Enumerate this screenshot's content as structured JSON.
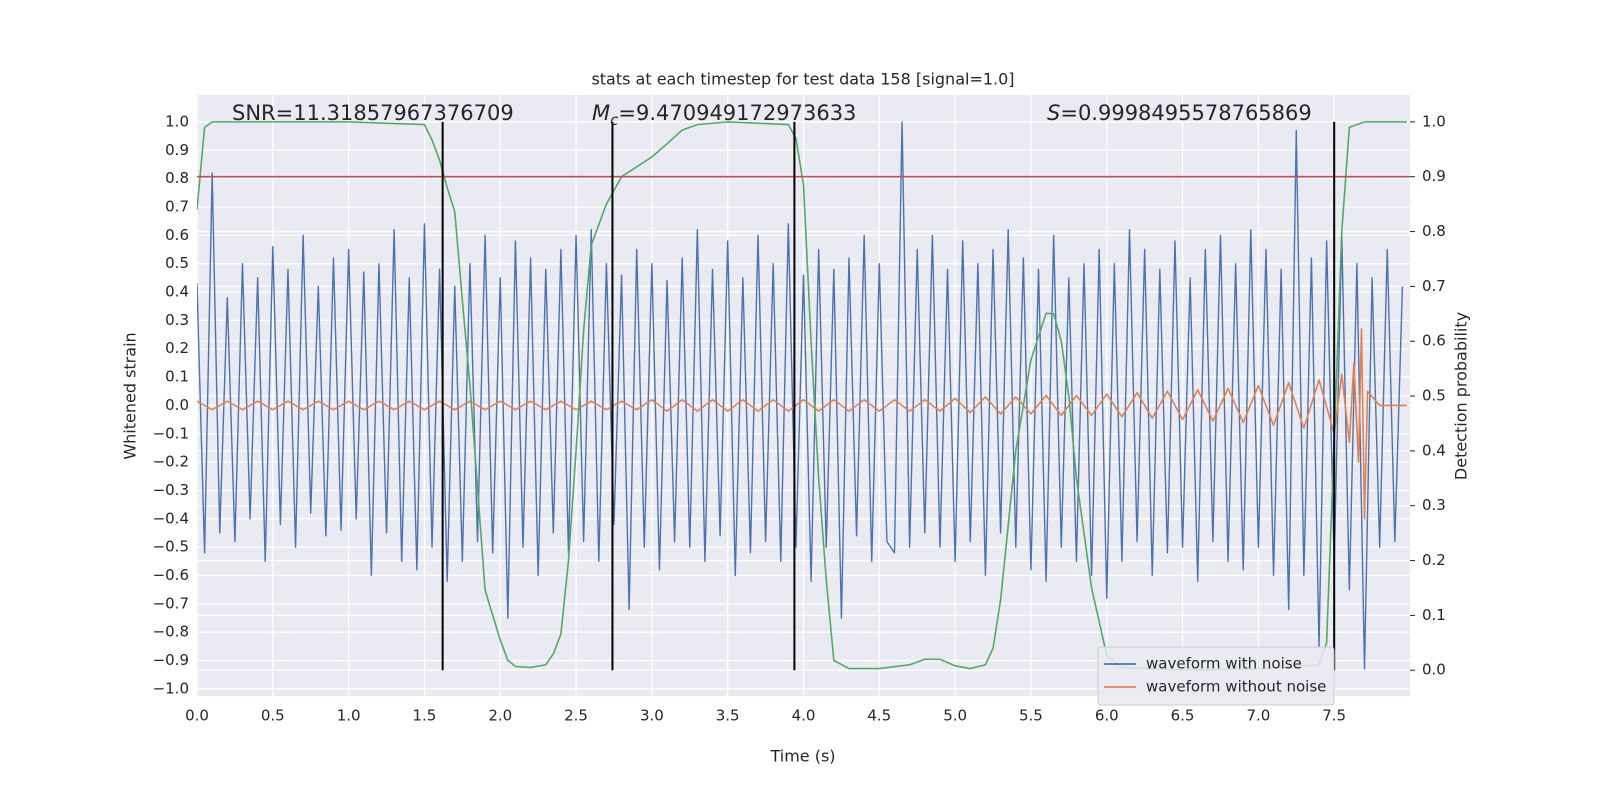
{
  "chart_data": {
    "type": "line",
    "title": "stats at each timestep for test data 158 [signal=1.0]",
    "x_label": "Time (s)",
    "y_label": "Whitened strain",
    "y2_label": "Detection probability",
    "xlim": [
      0,
      8.0
    ],
    "ylim": [
      -1.025,
      1.095
    ],
    "y2lim": [
      -0.047,
      1.049
    ],
    "grid": true,
    "background": "#eaeaf2",
    "legend": "lower right",
    "xticks": [
      {
        "value": 0,
        "label": "0.0"
      },
      {
        "value": 0.5,
        "label": "0.5"
      },
      {
        "value": 1,
        "label": "1.0"
      },
      {
        "value": 1.5,
        "label": "1.5"
      },
      {
        "value": 2,
        "label": "2.0"
      },
      {
        "value": 2.5,
        "label": "2.5"
      },
      {
        "value": 3,
        "label": "3.0"
      },
      {
        "value": 3.5,
        "label": "3.5"
      },
      {
        "value": 4,
        "label": "4.0"
      },
      {
        "value": 4.5,
        "label": "4.5"
      },
      {
        "value": 5,
        "label": "5.0"
      },
      {
        "value": 5.5,
        "label": "5.5"
      },
      {
        "value": 6,
        "label": "6.0"
      },
      {
        "value": 6.5,
        "label": "6.5"
      },
      {
        "value": 7,
        "label": "7.0"
      },
      {
        "value": 7.5,
        "label": "7.5"
      }
    ],
    "yticks": [
      {
        "value": -1,
        "label": "−1.0"
      },
      {
        "value": -0.9,
        "label": "−0.9"
      },
      {
        "value": -0.8,
        "label": "−0.8"
      },
      {
        "value": -0.7,
        "label": "−0.7"
      },
      {
        "value": -0.6,
        "label": "−0.6"
      },
      {
        "value": -0.5,
        "label": "−0.5"
      },
      {
        "value": -0.4,
        "label": "−0.4"
      },
      {
        "value": -0.3,
        "label": "−0.3"
      },
      {
        "value": -0.2,
        "label": "−0.2"
      },
      {
        "value": -0.1,
        "label": "−0.1"
      },
      {
        "value": 0,
        "label": "0.0"
      },
      {
        "value": 0.1,
        "label": "0.1"
      },
      {
        "value": 0.2,
        "label": "0.2"
      },
      {
        "value": 0.3,
        "label": "0.3"
      },
      {
        "value": 0.4,
        "label": "0.4"
      },
      {
        "value": 0.5,
        "label": "0.5"
      },
      {
        "value": 0.6,
        "label": "0.6"
      },
      {
        "value": 0.7,
        "label": "0.7"
      },
      {
        "value": 0.8,
        "label": "0.8"
      },
      {
        "value": 0.9,
        "label": "0.9"
      },
      {
        "value": 1,
        "label": "1.0"
      }
    ],
    "y2ticks": [
      {
        "value": 0,
        "label": "0.0"
      },
      {
        "value": 0.1,
        "label": "0.1"
      },
      {
        "value": 0.2,
        "label": "0.2"
      },
      {
        "value": 0.3,
        "label": "0.3"
      },
      {
        "value": 0.4,
        "label": "0.4"
      },
      {
        "value": 0.5,
        "label": "0.5"
      },
      {
        "value": 0.6,
        "label": "0.6"
      },
      {
        "value": 0.7,
        "label": "0.7"
      },
      {
        "value": 0.8,
        "label": "0.8"
      },
      {
        "value": 0.9,
        "label": "0.9"
      },
      {
        "value": 1,
        "label": "1.0"
      }
    ],
    "annotations": [
      {
        "text": "SNR=11.31857967376709"
      },
      {
        "symbol": "M",
        "subscript": "c",
        "text": "=9.470949172973633"
      },
      {
        "symbol": "S",
        "text": "=0.9998495578765869"
      }
    ],
    "series": [
      {
        "name": "waveform with noise",
        "color": "#4c72b0",
        "axis": "y",
        "in_legend": true,
        "x": [
          0,
          0.05,
          0.1,
          0.15,
          0.2,
          0.25,
          0.3,
          0.35,
          0.4,
          0.45,
          0.5,
          0.55,
          0.6,
          0.65,
          0.7,
          0.75,
          0.8,
          0.85,
          0.9,
          0.95,
          1,
          1.05,
          1.1,
          1.15,
          1.2,
          1.25,
          1.3,
          1.35,
          1.4,
          1.45,
          1.5,
          1.55,
          1.6,
          1.65,
          1.7,
          1.75,
          1.8,
          1.85,
          1.9,
          1.95,
          2,
          2.05,
          2.1,
          2.15,
          2.2,
          2.25,
          2.3,
          2.35,
          2.4,
          2.45,
          2.5,
          2.55,
          2.6,
          2.65,
          2.7,
          2.75,
          2.8,
          2.85,
          2.9,
          2.95,
          3,
          3.05,
          3.1,
          3.15,
          3.2,
          3.25,
          3.3,
          3.35,
          3.4,
          3.45,
          3.5,
          3.55,
          3.6,
          3.65,
          3.7,
          3.75,
          3.8,
          3.85,
          3.9,
          3.95,
          4,
          4.05,
          4.1,
          4.15,
          4.2,
          4.25,
          4.3,
          4.35,
          4.4,
          4.45,
          4.5,
          4.55,
          4.6,
          4.65,
          4.7,
          4.75,
          4.8,
          4.85,
          4.9,
          4.95,
          5,
          5.05,
          5.1,
          5.15,
          5.2,
          5.25,
          5.3,
          5.35,
          5.4,
          5.45,
          5.5,
          5.55,
          5.6,
          5.65,
          5.7,
          5.75,
          5.8,
          5.85,
          5.9,
          5.95,
          6,
          6.05,
          6.1,
          6.15,
          6.2,
          6.25,
          6.3,
          6.35,
          6.4,
          6.45,
          6.5,
          6.55,
          6.6,
          6.65,
          6.7,
          6.75,
          6.8,
          6.85,
          6.9,
          6.95,
          7,
          7.05,
          7.1,
          7.15,
          7.2,
          7.25,
          7.3,
          7.35,
          7.4,
          7.45,
          7.5,
          7.55,
          7.6,
          7.65,
          7.7,
          7.75,
          7.8,
          7.85,
          7.9,
          7.95
        ],
        "values": [
          0.43,
          -0.52,
          0.82,
          -0.45,
          0.38,
          -0.48,
          0.5,
          -0.4,
          0.45,
          -0.55,
          0.56,
          -0.42,
          0.48,
          -0.5,
          0.6,
          -0.38,
          0.42,
          -0.46,
          0.52,
          -0.44,
          0.55,
          -0.4,
          0.47,
          -0.6,
          0.5,
          -0.45,
          0.62,
          -0.55,
          0.45,
          -0.58,
          0.64,
          -0.5,
          0.48,
          -0.62,
          0.42,
          -0.55,
          0.5,
          -0.48,
          0.6,
          -0.52,
          0.45,
          -0.75,
          0.58,
          -0.5,
          0.52,
          -0.6,
          0.48,
          -0.45,
          0.55,
          -0.52,
          0.6,
          -0.48,
          0.62,
          -0.55,
          0.5,
          -0.42,
          0.46,
          -0.72,
          0.55,
          -0.5,
          0.5,
          -0.58,
          0.44,
          -0.48,
          0.52,
          -0.5,
          0.62,
          -0.55,
          0.48,
          -0.46,
          0.58,
          -0.6,
          0.45,
          -0.52,
          0.6,
          -0.48,
          0.5,
          -0.55,
          0.64,
          -0.5,
          0.46,
          -0.62,
          0.55,
          -0.5,
          0.48,
          -0.75,
          0.52,
          -0.46,
          0.6,
          -0.55,
          0.5,
          -0.48,
          -0.52,
          1.0,
          -0.5,
          0.55,
          -0.45,
          0.6,
          -0.5,
          0.48,
          -0.55,
          0.58,
          -0.48,
          0.5,
          -0.6,
          0.55,
          -0.45,
          0.62,
          -0.5,
          0.52,
          -0.58,
          0.48,
          -0.62,
          0.6,
          -0.5,
          0.45,
          -0.55,
          0.5,
          -0.6,
          0.55,
          -0.68,
          0.5,
          -0.55,
          0.62,
          -0.48,
          0.55,
          -0.6,
          0.48,
          -0.52,
          0.58,
          -0.5,
          0.45,
          -0.62,
          0.55,
          -0.48,
          0.6,
          -0.55,
          0.5,
          -0.58,
          0.62,
          -0.5,
          0.55,
          -0.6,
          0.48,
          -0.72,
          0.97,
          -0.6,
          0.52,
          -0.85,
          0.58,
          -0.55,
          0.6,
          -0.65,
          0.5,
          -0.93,
          0.45,
          -0.5,
          0.55,
          -0.48,
          0.42
        ]
      },
      {
        "name": "waveform without noise",
        "color": "#dd8452",
        "axis": "y",
        "in_legend": true,
        "x": [
          0,
          0.1,
          0.2,
          0.3,
          0.4,
          0.5,
          0.6,
          0.7,
          0.8,
          0.9,
          1,
          1.1,
          1.2,
          1.3,
          1.4,
          1.5,
          1.6,
          1.7,
          1.8,
          1.9,
          2,
          2.1,
          2.2,
          2.3,
          2.4,
          2.5,
          2.6,
          2.7,
          2.8,
          2.9,
          3,
          3.1,
          3.2,
          3.3,
          3.4,
          3.5,
          3.6,
          3.7,
          3.8,
          3.9,
          4,
          4.1,
          4.2,
          4.3,
          4.4,
          4.5,
          4.6,
          4.7,
          4.8,
          4.9,
          5,
          5.1,
          5.2,
          5.3,
          5.4,
          5.5,
          5.6,
          5.7,
          5.8,
          5.9,
          6,
          6.1,
          6.2,
          6.3,
          6.4,
          6.5,
          6.6,
          6.7,
          6.8,
          6.9,
          7,
          7.1,
          7.2,
          7.3,
          7.4,
          7.5,
          7.55,
          7.6,
          7.63,
          7.66,
          7.68,
          7.7,
          7.72,
          7.8,
          7.98
        ],
        "values": [
          0.015,
          -0.015,
          0.015,
          -0.015,
          0.015,
          -0.015,
          0.015,
          -0.015,
          0.015,
          -0.015,
          0.015,
          -0.015,
          0.015,
          -0.015,
          0.015,
          -0.015,
          0.015,
          -0.015,
          0.015,
          -0.015,
          0.015,
          -0.015,
          0.015,
          -0.015,
          0.015,
          -0.015,
          0.015,
          -0.015,
          0.015,
          -0.015,
          0.02,
          -0.02,
          0.02,
          -0.02,
          0.02,
          -0.02,
          0.02,
          -0.02,
          0.02,
          -0.02,
          0.02,
          -0.02,
          0.02,
          -0.02,
          0.02,
          -0.02,
          0.02,
          -0.02,
          0.02,
          -0.02,
          0.025,
          -0.025,
          0.03,
          -0.03,
          0.03,
          -0.03,
          0.035,
          -0.035,
          0.035,
          -0.035,
          0.04,
          -0.04,
          0.045,
          -0.045,
          0.05,
          -0.05,
          0.055,
          -0.055,
          0.06,
          -0.06,
          0.07,
          -0.07,
          0.08,
          -0.08,
          0.09,
          -0.1,
          0.11,
          -0.13,
          0.15,
          -0.2,
          0.27,
          -0.4,
          0.05,
          0,
          0
        ]
      },
      {
        "name": "Detection probability",
        "color": "#55a868",
        "axis": "y2",
        "in_legend": false,
        "x": [
          0,
          0.05,
          0.1,
          0.5,
          1,
          1.5,
          1.55,
          1.6,
          1.65,
          1.7,
          1.75,
          1.8,
          1.9,
          2,
          2.05,
          2.1,
          2.2,
          2.3,
          2.35,
          2.4,
          2.45,
          2.5,
          2.55,
          2.6,
          2.7,
          2.8,
          3,
          3.1,
          3.2,
          3.3,
          3.5,
          3.9,
          3.95,
          4,
          4.05,
          4.1,
          4.15,
          4.2,
          4.3,
          4.5,
          4.7,
          4.8,
          4.9,
          5,
          5.1,
          5.2,
          5.25,
          5.3,
          5.4,
          5.5,
          5.6,
          5.65,
          5.7,
          5.75,
          5.8,
          5.9,
          6,
          6.1,
          6.5,
          7,
          7.4,
          7.45,
          7.5,
          7.55,
          7.6,
          7.7,
          7.98
        ],
        "values": [
          0.84,
          0.99,
          1.0,
          1.0,
          1.0,
          0.995,
          0.967,
          0.93,
          0.88,
          0.836,
          0.675,
          0.52,
          0.146,
          0.055,
          0.018,
          0.007,
          0.005,
          0.01,
          0.03,
          0.066,
          0.2,
          0.4,
          0.62,
          0.775,
          0.85,
          0.9,
          0.936,
          0.96,
          0.985,
          0.995,
          1.0,
          0.995,
          0.97,
          0.885,
          0.6,
          0.35,
          0.165,
          0.018,
          0.003,
          0.003,
          0.01,
          0.02,
          0.02,
          0.008,
          0.003,
          0.01,
          0.04,
          0.128,
          0.4,
          0.566,
          0.651,
          0.65,
          0.6,
          0.5,
          0.35,
          0.15,
          0.027,
          0.005,
          0.0,
          0.002,
          0.01,
          0.05,
          0.42,
          0.8,
          0.99,
          1.0,
          1.0
        ]
      }
    ],
    "threshold": {
      "y": 0.9,
      "axis": "y2",
      "color": "#c44e52"
    },
    "vlines": {
      "x": [
        1.62,
        2.74,
        3.94,
        7.5
      ],
      "ymin": 0,
      "ymax": 1.0,
      "axis": "y2",
      "color": "#000000"
    }
  }
}
